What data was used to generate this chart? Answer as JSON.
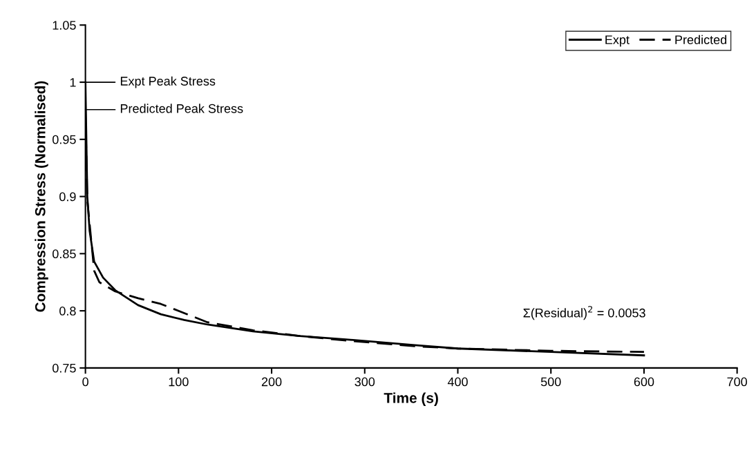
{
  "chart_data": {
    "type": "line",
    "xlabel": "Time (s)",
    "ylabel": "Compression Stress (Normalised)",
    "xlim": [
      0,
      700
    ],
    "xticks": [
      0,
      100,
      200,
      300,
      400,
      500,
      600,
      700
    ],
    "ylim": [
      0.75,
      1.05
    ],
    "yticks": [
      0.75,
      0.8,
      0.85,
      0.9,
      0.95,
      1,
      1.05
    ],
    "grid": false,
    "legend": "top right",
    "marker": "none",
    "series": [
      {
        "name": "Expt",
        "color": "#000000",
        "line_style": "solid",
        "x": [
          0,
          2,
          4.5,
          9.4,
          19,
          32,
          56.5,
          81,
          106,
          131,
          180,
          230,
          280,
          354,
          400,
          500,
          600
        ],
        "values": [
          1.0,
          0.9,
          0.87,
          0.843,
          0.829,
          0.818,
          0.805,
          0.797,
          0.792,
          0.788,
          0.782,
          0.778,
          0.775,
          0.77,
          0.767,
          0.764,
          0.761
        ]
      },
      {
        "name": "Predicted",
        "color": "#000000",
        "line_style": "dashed",
        "x": [
          0,
          2,
          9.4,
          15,
          32,
          56.5,
          81,
          131,
          180,
          230,
          280,
          354,
          400,
          500,
          600
        ],
        "values": [
          0.976,
          0.897,
          0.835,
          0.825,
          0.817,
          0.811,
          0.806,
          0.79,
          0.783,
          0.778,
          0.774,
          0.769,
          0.767,
          0.765,
          0.764
        ]
      }
    ],
    "annotations": [
      {
        "text": "Expt Peak Stress",
        "x": 0,
        "y": 1.0
      },
      {
        "text": "Predicted Peak Stress",
        "x": 0,
        "y": 0.976
      },
      "Σ(Residual)$^{2}$ = 0.0053"
    ]
  }
}
